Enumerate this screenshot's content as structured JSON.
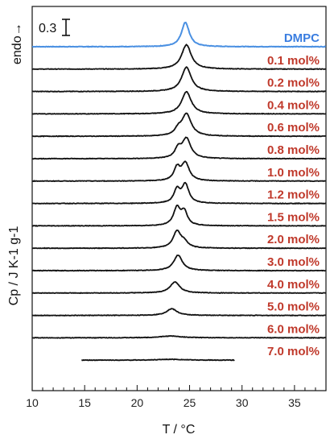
{
  "chart_data": {
    "type": "line",
    "title": "",
    "xlabel": "T / °C",
    "ylabel": "Cp / J K-1 g-1",
    "xlim": [
      10,
      38
    ],
    "x_ticks": [
      10,
      15,
      20,
      25,
      30,
      35
    ],
    "y_axis_ticks_shown": false,
    "stacked": true,
    "scale_bar": {
      "label": "0.3",
      "value": 0.3
    },
    "endo_label": "endo→",
    "colors": {
      "reference": "#4a90e2",
      "series": "#111111",
      "label": "#c0392b"
    },
    "series": [
      {
        "name": "DMPC",
        "peaks": [
          [
            24.6,
            0.55,
            0.45
          ]
        ]
      },
      {
        "name": "0.1 mol%",
        "peaks": [
          [
            24.7,
            0.55,
            0.55
          ]
        ]
      },
      {
        "name": "0.2 mol%",
        "peaks": [
          [
            24.7,
            0.55,
            0.55
          ]
        ]
      },
      {
        "name": "0.4 mol%",
        "peaks": [
          [
            24.7,
            0.5,
            0.55
          ]
        ]
      },
      {
        "name": "0.6 mol%",
        "peaks": [
          [
            24.7,
            0.5,
            0.55
          ],
          [
            23.9,
            0.12,
            0.35
          ]
        ]
      },
      {
        "name": "0.8 mol%",
        "peaks": [
          [
            24.7,
            0.45,
            0.5
          ],
          [
            23.9,
            0.2,
            0.35
          ]
        ]
      },
      {
        "name": "1.0 mol%",
        "peaks": [
          [
            24.6,
            0.4,
            0.45
          ],
          [
            23.8,
            0.28,
            0.35
          ]
        ]
      },
      {
        "name": "1.2 mol%",
        "peaks": [
          [
            24.6,
            0.42,
            0.4
          ],
          [
            23.8,
            0.3,
            0.35
          ]
        ]
      },
      {
        "name": "1.5 mol%",
        "peaks": [
          [
            23.8,
            0.4,
            0.4
          ],
          [
            24.5,
            0.3,
            0.35
          ]
        ]
      },
      {
        "name": "2.0 mol%",
        "peaks": [
          [
            23.8,
            0.38,
            0.45
          ],
          [
            24.5,
            0.12,
            0.4
          ]
        ]
      },
      {
        "name": "3.0 mol%",
        "peaks": [
          [
            23.9,
            0.35,
            0.5
          ]
        ]
      },
      {
        "name": "4.0 mol%",
        "peaks": [
          [
            23.6,
            0.25,
            0.55
          ]
        ]
      },
      {
        "name": "5.0 mol%",
        "peaks": [
          [
            23.3,
            0.15,
            0.6
          ]
        ]
      },
      {
        "name": "6.0 mol%",
        "peaks": [
          [
            23.2,
            0.04,
            1.2
          ]
        ]
      },
      {
        "name": "7.0 mol%",
        "peaks": [
          [
            23.2,
            0.02,
            1.5
          ]
        ],
        "x_range": [
          14.7,
          29.3
        ]
      }
    ]
  }
}
